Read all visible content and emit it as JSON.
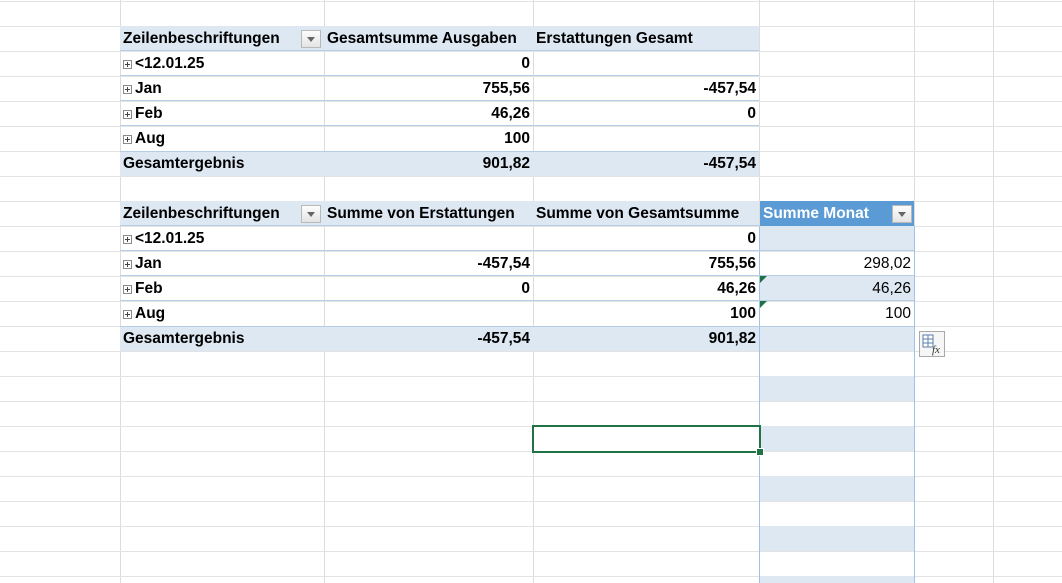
{
  "pivot1": {
    "headers": [
      "Zeilenbeschriftungen",
      "Gesamtsumme Ausgaben",
      "Erstattungen Gesamt"
    ],
    "rows": [
      {
        "label": "<12.01.25",
        "ausgaben": "0",
        "erstattungen": ""
      },
      {
        "label": "Jan",
        "ausgaben": "755,56",
        "erstattungen": "-457,54"
      },
      {
        "label": "Feb",
        "ausgaben": "46,26",
        "erstattungen": "0"
      },
      {
        "label": "Aug",
        "ausgaben": "100",
        "erstattungen": ""
      }
    ],
    "total": {
      "label": "Gesamtergebnis",
      "ausgaben": "901,82",
      "erstattungen": "-457,54"
    }
  },
  "pivot2": {
    "headers": [
      "Zeilenbeschriftungen",
      "Summe von Erstattungen",
      "Summe von Gesamtsumme",
      "Summe Monat"
    ],
    "rows": [
      {
        "label": "<12.01.25",
        "erstattungen": "",
        "gesamtsumme": "0",
        "monat": ""
      },
      {
        "label": "Jan",
        "erstattungen": "-457,54",
        "gesamtsumme": "755,56",
        "monat": "298,02"
      },
      {
        "label": "Feb",
        "erstattungen": "0",
        "gesamtsumme": "46,26",
        "monat": "46,26"
      },
      {
        "label": "Aug",
        "erstattungen": "",
        "gesamtsumme": "100",
        "monat": "100"
      }
    ],
    "total": {
      "label": "Gesamtergebnis",
      "erstattungen": "-457,54",
      "gesamtsumme": "901,82",
      "monat": ""
    }
  },
  "icons": {
    "filter_dropdown": "filter-dropdown-icon",
    "expand": "expand-plus-icon",
    "error_indicator": "error-indicator-icon",
    "autofill_options": "quick-analysis-fx-icon"
  },
  "colors": {
    "header_band": "#dde8f3",
    "header_line": "#b6cde6",
    "selected_header": "#5b9bd5",
    "selection_border": "#217346",
    "error_triangle": "#1e7145"
  }
}
